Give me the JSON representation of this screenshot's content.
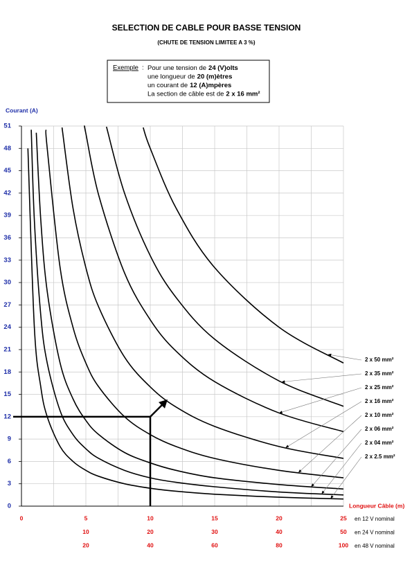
{
  "chart_data": {
    "type": "line",
    "title": "SELECTION DE CABLE POUR BASSE TENSION",
    "subtitle": "(CHUTE DE TENSION LIMITEE A 3 %)",
    "ylabel": "Courant (A)",
    "xlabel": "Longueur Câble (m)",
    "xlim": [
      0,
      25
    ],
    "ylim": [
      0,
      51
    ],
    "yticks": [
      0,
      3,
      6,
      9,
      12,
      15,
      18,
      21,
      24,
      27,
      30,
      33,
      36,
      39,
      42,
      45,
      48,
      51
    ],
    "xgrid": [
      0,
      2.5,
      5,
      7.5,
      10,
      12.5,
      15,
      17.5,
      20,
      22.5,
      25
    ],
    "grid": true,
    "x_scales": [
      {
        "name": "en 12 V nominal",
        "ticks": [
          0,
          5,
          10,
          15,
          20,
          25
        ]
      },
      {
        "name": "en 24 V nominal",
        "ticks": [
          10,
          20,
          30,
          40,
          50
        ]
      },
      {
        "name": "en 48 V nominal",
        "ticks": [
          20,
          40,
          60,
          80,
          100
        ]
      }
    ],
    "series": [
      {
        "name": "2 x 50 mm²",
        "color": "#000000",
        "x": [
          9.45,
          10,
          12,
          15,
          20,
          25
        ],
        "values": [
          50.8,
          48,
          40,
          32,
          24,
          19.2
        ]
      },
      {
        "name": "2 x 35 mm²",
        "color": "#000000",
        "x": [
          6.6,
          8,
          10,
          12,
          15,
          20,
          25
        ],
        "values": [
          50.9,
          42,
          33.6,
          28,
          22.4,
          16.8,
          13.4
        ]
      },
      {
        "name": "2 x 25 mm²",
        "color": "#000000",
        "x": [
          4.9,
          5,
          6,
          8,
          10,
          12,
          15,
          20,
          25
        ],
        "values": [
          51,
          50,
          41.7,
          31.3,
          25,
          20.8,
          16.7,
          12.5,
          10
        ]
      },
      {
        "name": "2 x 16 mm²",
        "color": "#000000",
        "x": [
          3.15,
          4,
          5,
          6,
          8,
          10,
          12,
          15,
          20,
          25
        ],
        "values": [
          50.8,
          40,
          32,
          26.7,
          20,
          16,
          13.3,
          10.7,
          8,
          6.4
        ]
      },
      {
        "name": "2 x 10 mm²",
        "color": "#000000",
        "x": [
          1.9,
          2,
          3,
          4,
          5,
          6,
          8,
          10,
          12,
          15,
          20,
          25
        ],
        "values": [
          50.5,
          48,
          32,
          24,
          19.2,
          16,
          12,
          9.6,
          8,
          6.4,
          4.8,
          3.8
        ]
      },
      {
        "name": "2 x 06 mm²",
        "color": "#000000",
        "x": [
          1.15,
          1.5,
          2,
          3,
          4,
          5,
          6,
          8,
          10,
          12,
          15,
          20,
          25
        ],
        "values": [
          50.1,
          38.4,
          28.8,
          19.2,
          14.4,
          11.5,
          9.6,
          7.2,
          5.8,
          4.8,
          3.8,
          2.9,
          2.3
        ]
      },
      {
        "name": "2 x 04 mm²",
        "color": "#000000",
        "x": [
          0.76,
          1,
          1.5,
          2,
          3,
          4,
          5,
          6,
          8,
          10,
          12,
          15,
          20,
          25
        ],
        "values": [
          50.5,
          38.4,
          25.6,
          19.2,
          12.8,
          9.6,
          7.7,
          6.4,
          4.8,
          3.8,
          3.2,
          2.6,
          1.9,
          1.5
        ]
      },
      {
        "name": "2 x 2.5 mm²",
        "color": "#000000",
        "x": [
          0.5,
          1,
          1.5,
          2,
          3,
          4,
          5,
          6,
          8,
          10,
          12,
          15,
          20,
          25
        ],
        "values": [
          48,
          24,
          16,
          12,
          8,
          6,
          4.8,
          4,
          3,
          2.4,
          2,
          1.6,
          1.2,
          0.96
        ]
      }
    ],
    "example": {
      "label": "Exemple",
      "separator": ":",
      "lines": [
        [
          "Pour une tension de",
          "24 (V)olts"
        ],
        [
          "une longueur de",
          "20 (m)ètres"
        ],
        [
          "un courant de",
          "12 (A)mpères"
        ],
        [
          "La section de câble est de",
          "2 x 16 mm²"
        ]
      ],
      "x": 10,
      "y": 12
    }
  }
}
